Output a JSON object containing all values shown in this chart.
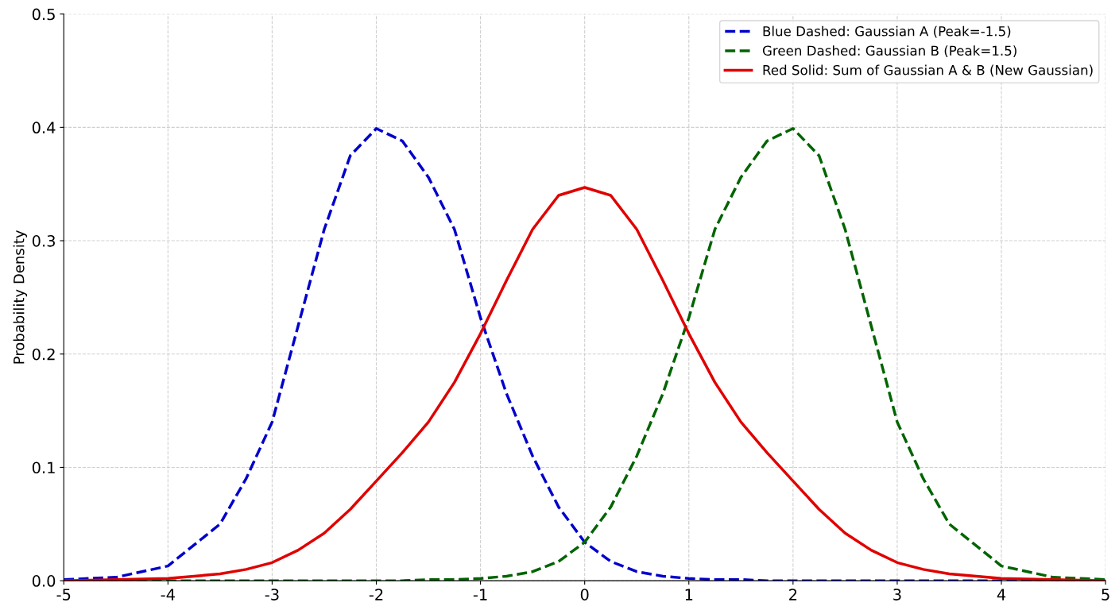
{
  "chart_data": {
    "type": "line",
    "ylabel": "Probability Density",
    "x": [
      -5,
      -4.5,
      -4,
      -3.5,
      -3.25,
      -3,
      -2.75,
      -2.5,
      -2.25,
      -2,
      -1.75,
      -1.5,
      -1.25,
      -1,
      -0.75,
      -0.5,
      -0.25,
      0,
      0.25,
      0.5,
      0.75,
      1,
      1.25,
      1.5,
      1.75,
      2,
      2.25,
      2.5,
      2.75,
      3,
      3.25,
      3.5,
      4,
      4.5,
      5
    ],
    "series": [
      {
        "name": "Blue Dashed: Gaussian A (Peak=-1.5)",
        "color": "#0000cc",
        "line_style": "dashed",
        "values": [
          0.001,
          0.003,
          0.013,
          0.05,
          0.09,
          0.14,
          0.225,
          0.31,
          0.375,
          0.399,
          0.388,
          0.356,
          0.31,
          0.232,
          0.165,
          0.11,
          0.065,
          0.034,
          0.017,
          0.008,
          0.004,
          0.002,
          0.001,
          0.001,
          0,
          0,
          0,
          0,
          0,
          0,
          0,
          0,
          0,
          0,
          0
        ]
      },
      {
        "name": "Green Dashed: Gaussian B (Peak=1.5)",
        "color": "#006400",
        "line_style": "dashed",
        "values": [
          0,
          0,
          0,
          0,
          0,
          0,
          0,
          0,
          0,
          0,
          0,
          0.001,
          0.001,
          0.002,
          0.004,
          0.008,
          0.017,
          0.034,
          0.065,
          0.11,
          0.165,
          0.232,
          0.31,
          0.356,
          0.388,
          0.399,
          0.375,
          0.31,
          0.225,
          0.14,
          0.09,
          0.05,
          0.013,
          0.003,
          0.001
        ]
      },
      {
        "name": "Red Solid: Sum of Gaussian A & B (New Gaussian)",
        "color": "#e00000",
        "line_style": "solid",
        "values": [
          0,
          0.001,
          0.002,
          0.006,
          0.01,
          0.016,
          0.027,
          0.042,
          0.063,
          0.088,
          0.113,
          0.14,
          0.175,
          0.218,
          0.265,
          0.31,
          0.34,
          0.347,
          0.34,
          0.31,
          0.265,
          0.218,
          0.175,
          0.14,
          0.113,
          0.088,
          0.063,
          0.042,
          0.027,
          0.016,
          0.01,
          0.006,
          0.002,
          0.001,
          0
        ]
      }
    ],
    "xlim": [
      -5,
      5
    ],
    "xticks": [
      -5,
      -4,
      -3,
      -2,
      -1,
      0,
      1,
      2,
      3,
      4,
      5
    ],
    "ylim": [
      0,
      0.5
    ],
    "yticks": [
      {
        "value": 0,
        "label": "0.0"
      },
      0.1,
      0.2,
      0.3,
      0.4,
      0.5
    ],
    "grid": true,
    "legend": "top right"
  }
}
